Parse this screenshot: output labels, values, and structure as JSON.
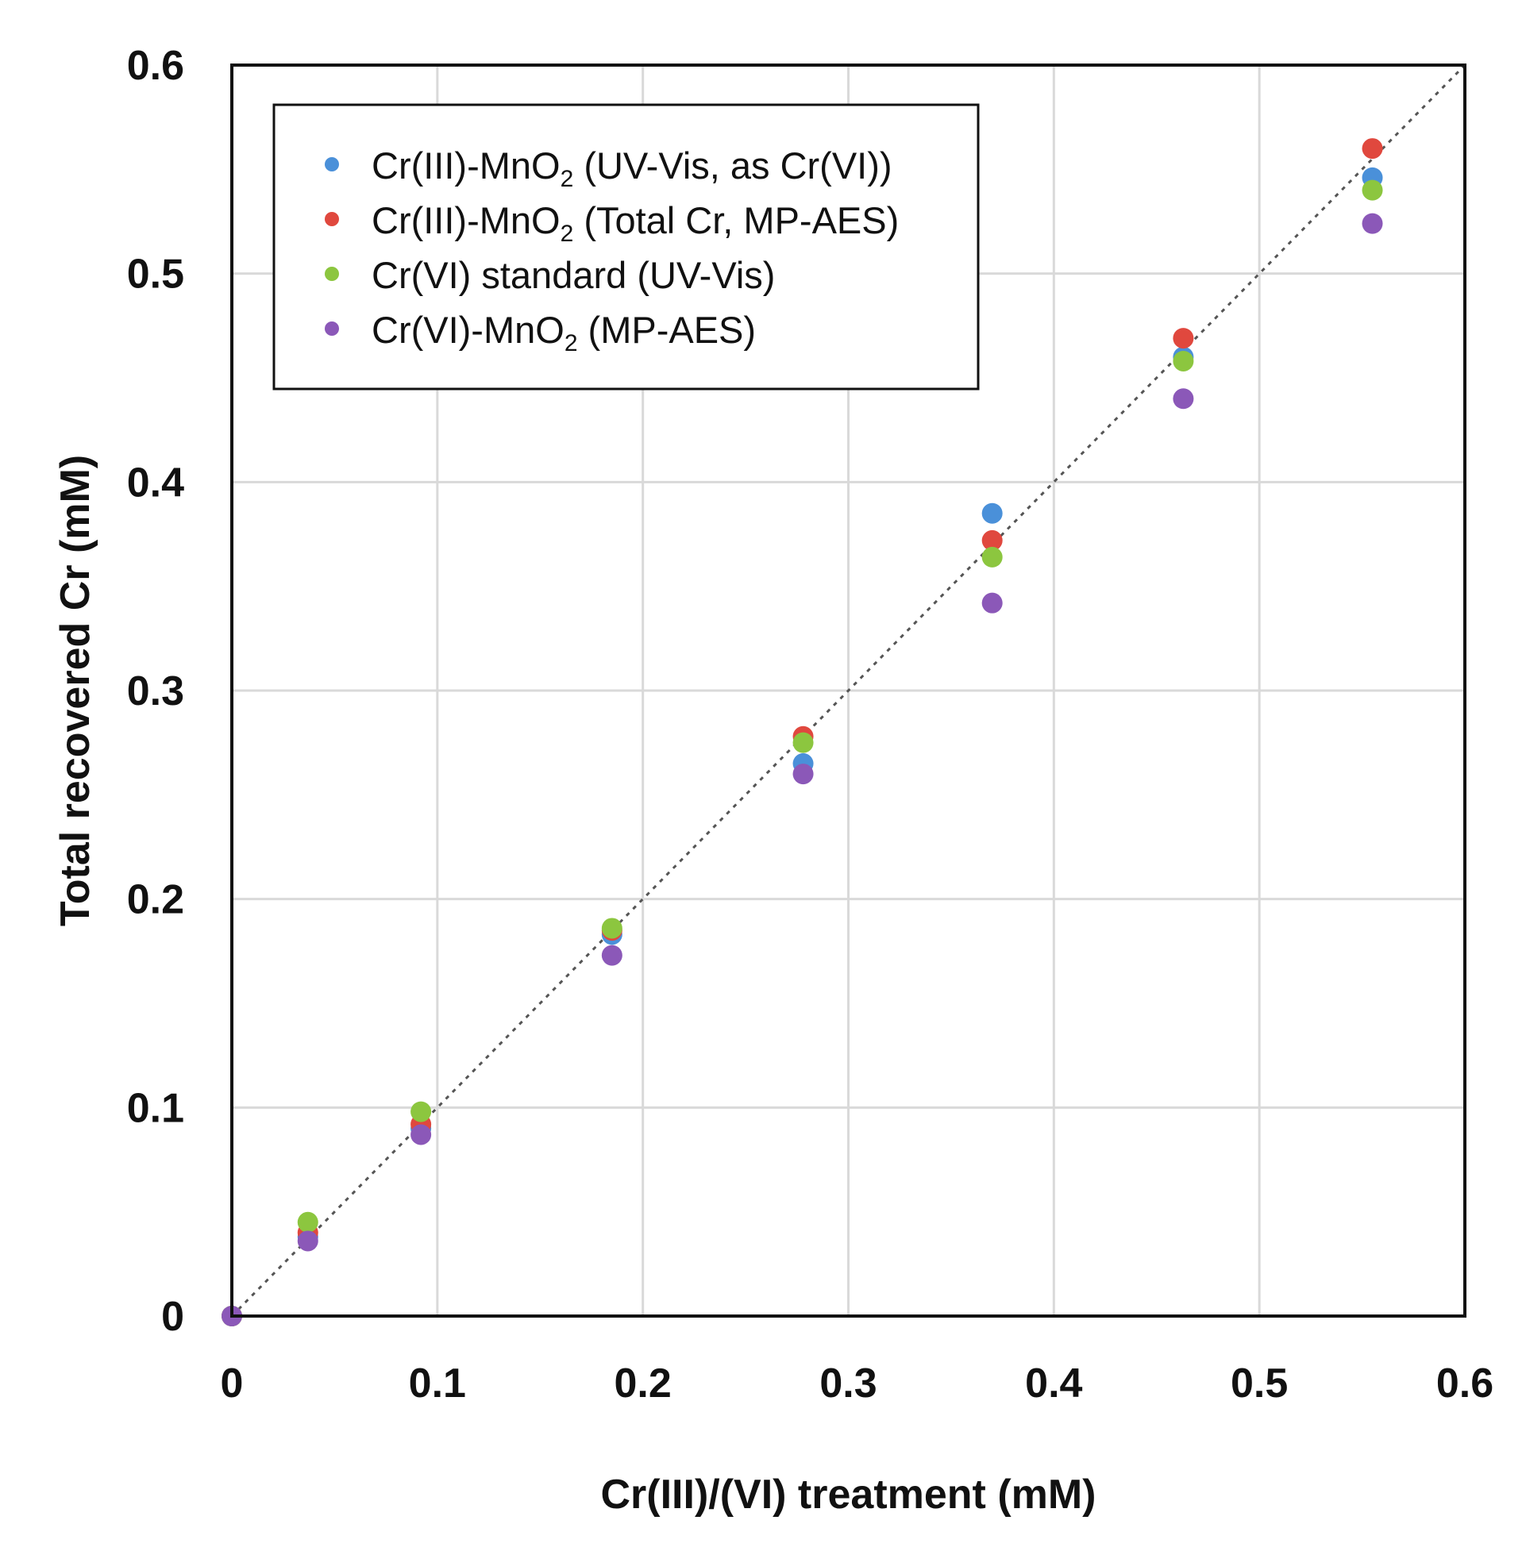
{
  "chart_data": {
    "type": "scatter",
    "xlabel": "Cr(III)/(VI) treatment (mM)",
    "ylabel": "Total recovered Cr (mM)",
    "xlim": [
      0,
      0.6
    ],
    "ylim": [
      0,
      0.6
    ],
    "xticks": [
      "0",
      "0.1",
      "0.2",
      "0.3",
      "0.4",
      "0.5",
      "0.6"
    ],
    "yticks": [
      "0",
      "0.1",
      "0.2",
      "0.3",
      "0.4",
      "0.5",
      "0.6"
    ],
    "grid": true,
    "legend_position": "top-left",
    "reference_line": {
      "style": "dotted",
      "x": [
        0,
        0.6
      ],
      "y": [
        0,
        0.6
      ]
    },
    "series": [
      {
        "name": "Cr(III)-MnO2 (UV-Vis, as Cr(VI))",
        "label_parts": [
          "Cr(III)-MnO",
          "2",
          " (UV-Vis, as Cr(VI))"
        ],
        "color": "#4a90d9",
        "x": [
          0,
          0.037,
          0.092,
          0.185,
          0.278,
          0.37,
          0.463,
          0.555
        ],
        "y": [
          0,
          0.038,
          0.09,
          0.183,
          0.265,
          0.385,
          0.46,
          0.546
        ]
      },
      {
        "name": "Cr(III)-MnO2 (Total Cr, MP-AES)",
        "label_parts": [
          "Cr(III)-MnO",
          "2",
          " (Total Cr, MP-AES)"
        ],
        "color": "#e0483e",
        "x": [
          0,
          0.037,
          0.092,
          0.185,
          0.278,
          0.37,
          0.463,
          0.555
        ],
        "y": [
          0,
          0.04,
          0.092,
          0.185,
          0.278,
          0.372,
          0.469,
          0.56
        ]
      },
      {
        "name": "Cr(VI) standard (UV-Vis)",
        "label_parts": [
          "Cr(VI) standard (UV-Vis)"
        ],
        "color": "#8cc63f",
        "x": [
          0,
          0.037,
          0.092,
          0.185,
          0.278,
          0.37,
          0.463,
          0.555
        ],
        "y": [
          0,
          0.045,
          0.098,
          0.186,
          0.275,
          0.364,
          0.458,
          0.54
        ]
      },
      {
        "name": "Cr(VI)-MnO2 (MP-AES)",
        "label_parts": [
          "Cr(VI)-MnO",
          "2",
          " (MP-AES)"
        ],
        "color": "#8b58b8",
        "x": [
          0,
          0.037,
          0.092,
          0.185,
          0.278,
          0.37,
          0.463,
          0.555
        ],
        "y": [
          0,
          0.036,
          0.087,
          0.173,
          0.26,
          0.342,
          0.44,
          0.524
        ]
      }
    ]
  }
}
